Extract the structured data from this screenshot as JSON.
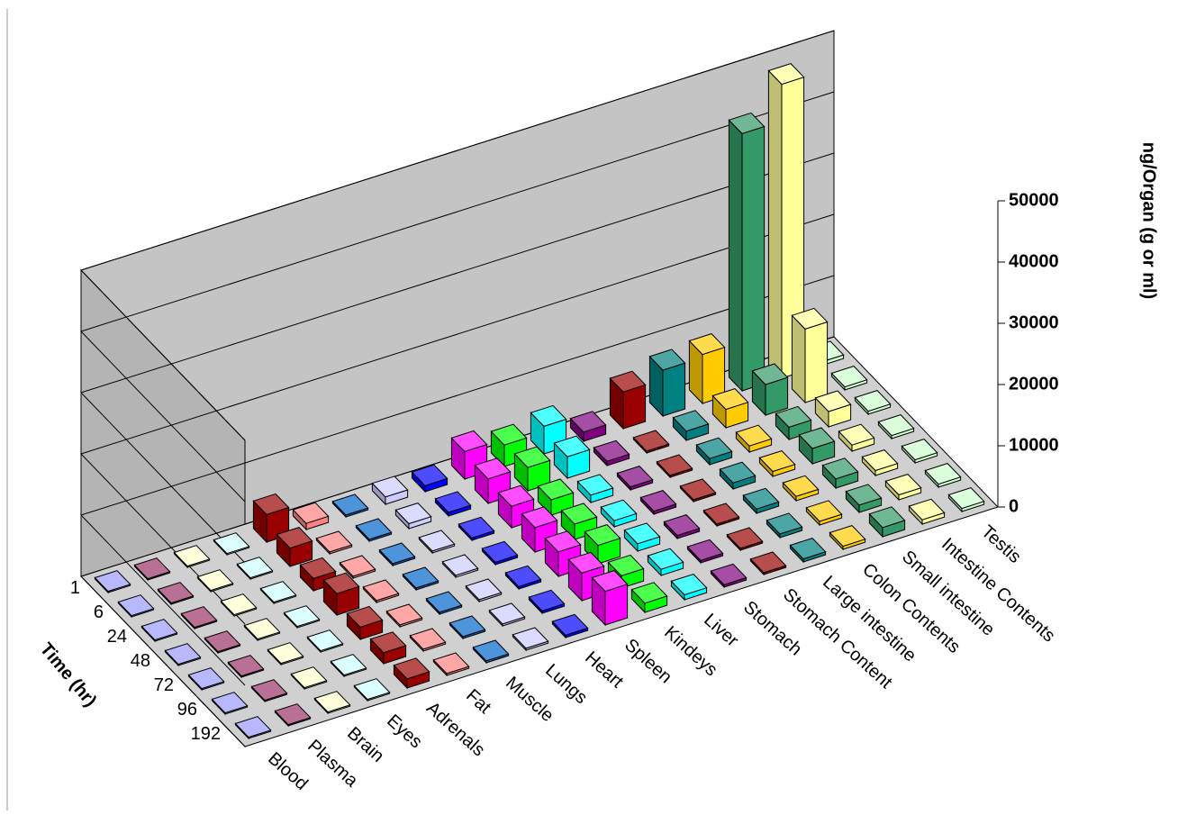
{
  "chart_data": {
    "type": "bar3d",
    "x_label": "Time (hr)",
    "y_label": "ng/Organ (g or ml)",
    "categories": [
      "1",
      "6",
      "24",
      "48",
      "72",
      "96",
      "192"
    ],
    "ylim": [
      0,
      50000
    ],
    "yticks": [
      0,
      10000,
      20000,
      30000,
      40000,
      50000
    ],
    "grid": true,
    "series": [
      {
        "name": "Blood",
        "color": "#9999ff",
        "values": [
          200,
          200,
          200,
          200,
          200,
          200,
          200
        ]
      },
      {
        "name": "Plasma",
        "color": "#993366",
        "values": [
          200,
          200,
          200,
          200,
          200,
          200,
          200
        ]
      },
      {
        "name": "Brain",
        "color": "#ffffcc",
        "values": [
          200,
          200,
          200,
          200,
          200,
          200,
          200
        ]
      },
      {
        "name": "Eyes",
        "color": "#ccffff",
        "values": [
          200,
          200,
          200,
          200,
          200,
          200,
          200
        ]
      },
      {
        "name": "Adrenals",
        "color": "#990000",
        "values": [
          4500,
          3000,
          2000,
          3500,
          2000,
          1800,
          1500
        ]
      },
      {
        "name": "Fat",
        "color": "#ff8080",
        "values": [
          1000,
          300,
          300,
          300,
          300,
          300,
          300
        ]
      },
      {
        "name": "Muscle",
        "color": "#0066cc",
        "values": [
          300,
          300,
          300,
          300,
          300,
          300,
          300
        ]
      },
      {
        "name": "Lungs",
        "color": "#ccccff",
        "values": [
          1200,
          800,
          300,
          300,
          300,
          300,
          300
        ]
      },
      {
        "name": "Heart",
        "color": "#0000ff",
        "values": [
          1000,
          600,
          400,
          400,
          400,
          400,
          400
        ]
      },
      {
        "name": "Spleen",
        "color": "#ff00ff",
        "values": [
          4500,
          4000,
          3500,
          4000,
          4000,
          4500,
          5500
        ]
      },
      {
        "name": "Kindeys",
        "color": "#00ff00",
        "values": [
          3500,
          3800,
          2500,
          2500,
          3000,
          2000,
          1500
        ]
      },
      {
        "name": "Liver",
        "color": "#00ffff",
        "values": [
          4500,
          3500,
          1200,
          1000,
          1200,
          1000,
          800
        ]
      },
      {
        "name": "Stomach",
        "color": "#800080",
        "values": [
          1500,
          700,
          500,
          500,
          500,
          400,
          400
        ]
      },
      {
        "name": "Stomach Content",
        "color": "#990000",
        "values": [
          6000,
          300,
          300,
          300,
          300,
          300,
          300
        ]
      },
      {
        "name": "Large intestine",
        "color": "#008080",
        "values": [
          7500,
          1500,
          1000,
          1000,
          700,
          600,
          500
        ]
      },
      {
        "name": "Colon Contents",
        "color": "#ffcc00",
        "values": [
          8000,
          3000,
          1000,
          800,
          700,
          600,
          500
        ]
      },
      {
        "name": "Small intestine",
        "color": "#339966",
        "values": [
          42000,
          5000,
          2000,
          2500,
          1500,
          1200,
          1500
        ]
      },
      {
        "name": "Intestine Contents",
        "color": "#ffff99",
        "values": [
          48000,
          12000,
          2500,
          1000,
          800,
          800,
          700
        ]
      },
      {
        "name": "Testis",
        "color": "#ccffcc",
        "values": [
          600,
          500,
          500,
          500,
          500,
          500,
          500
        ]
      }
    ]
  }
}
